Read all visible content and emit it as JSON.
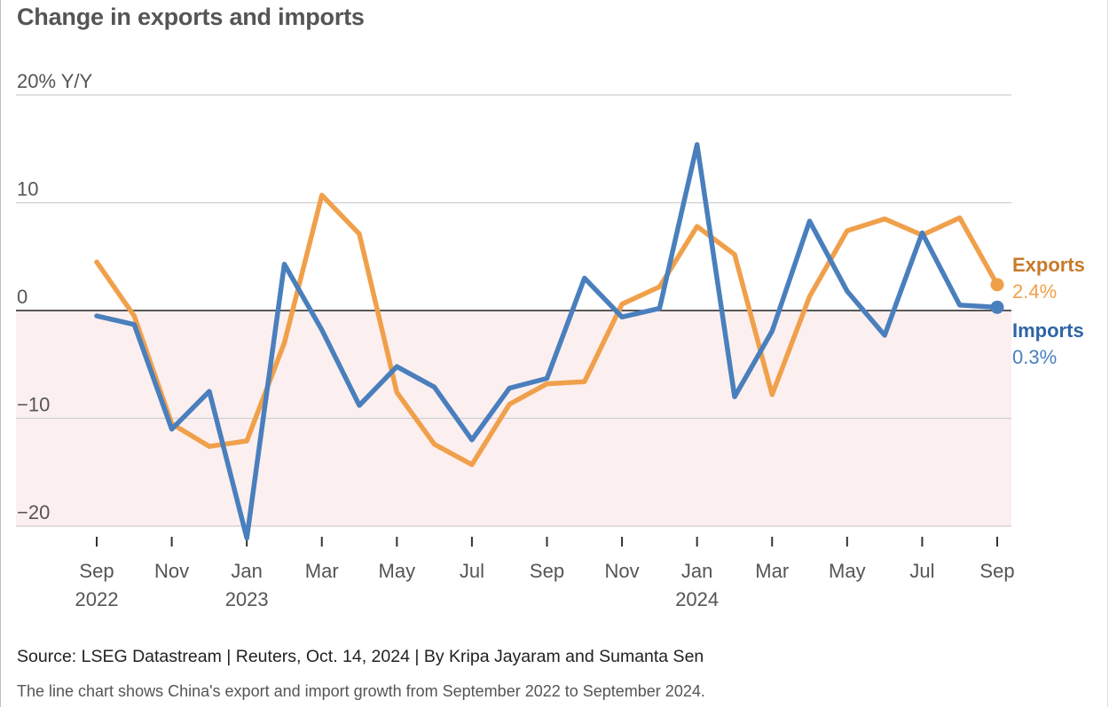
{
  "chart_data": {
    "type": "line",
    "title": "Change in exports and imports",
    "y_unit_label": "20% Y/Y",
    "ylim": [
      -20,
      20
    ],
    "y_ticks": [
      {
        "value": 20,
        "label": "20% Y/Y"
      },
      {
        "value": 10,
        "label": "10"
      },
      {
        "value": 0,
        "label": "0"
      },
      {
        "value": -10,
        "label": "−10"
      },
      {
        "value": -20,
        "label": "−20"
      }
    ],
    "x": [
      "2022-09",
      "2022-10",
      "2022-11",
      "2022-12",
      "2023-01",
      "2023-02",
      "2023-03",
      "2023-04",
      "2023-05",
      "2023-06",
      "2023-07",
      "2023-08",
      "2023-09",
      "2023-10",
      "2023-11",
      "2023-12",
      "2024-01",
      "2024-02",
      "2024-03",
      "2024-04",
      "2024-05",
      "2024-06",
      "2024-07",
      "2024-08",
      "2024-09"
    ],
    "x_ticks": [
      {
        "x": "2022-09",
        "label": "Sep",
        "year": "2022"
      },
      {
        "x": "2022-11",
        "label": "Nov",
        "year": ""
      },
      {
        "x": "2023-01",
        "label": "Jan",
        "year": "2023"
      },
      {
        "x": "2023-03",
        "label": "Mar",
        "year": ""
      },
      {
        "x": "2023-05",
        "label": "May",
        "year": ""
      },
      {
        "x": "2023-07",
        "label": "Jul",
        "year": ""
      },
      {
        "x": "2023-09",
        "label": "Sep",
        "year": ""
      },
      {
        "x": "2023-11",
        "label": "Nov",
        "year": ""
      },
      {
        "x": "2024-01",
        "label": "Jan",
        "year": "2024"
      },
      {
        "x": "2024-03",
        "label": "Mar",
        "year": ""
      },
      {
        "x": "2024-05",
        "label": "May",
        "year": ""
      },
      {
        "x": "2024-07",
        "label": "Jul",
        "year": ""
      },
      {
        "x": "2024-09",
        "label": "Sep",
        "year": ""
      }
    ],
    "series": [
      {
        "name": "Exports",
        "color": "#f0a04b",
        "label_color": "#c97a2a",
        "end_label": "2.4%",
        "values": [
          4.5,
          -0.5,
          -10.5,
          -12.6,
          -12.1,
          -3.0,
          10.7,
          7.1,
          -7.6,
          -12.4,
          -14.3,
          -8.7,
          -6.8,
          -6.6,
          0.6,
          2.2,
          7.8,
          5.2,
          -7.8,
          1.3,
          7.4,
          8.5,
          7.0,
          8.6,
          2.4
        ]
      },
      {
        "name": "Imports",
        "color": "#4a7fbd",
        "label_color": "#2e64a8",
        "end_label": "0.3%",
        "values": [
          -0.5,
          -1.3,
          -11.0,
          -7.5,
          -21.1,
          4.3,
          -1.8,
          -8.8,
          -5.2,
          -7.1,
          -12.0,
          -7.2,
          -6.3,
          3.0,
          -0.6,
          0.2,
          15.4,
          -8.0,
          -1.9,
          8.3,
          1.8,
          -2.3,
          7.2,
          0.5,
          0.3
        ]
      }
    ],
    "grid": true,
    "negative_region_shaded": true,
    "legend": "direct labels at line ends (right)"
  },
  "footer": {
    "source": "Source: LSEG Datastream | Reuters, Oct. 14, 2024 | By Kripa Jayaram and Sumanta Sen",
    "description": "The line chart shows China's export and import growth from September 2022 to September 2024."
  }
}
